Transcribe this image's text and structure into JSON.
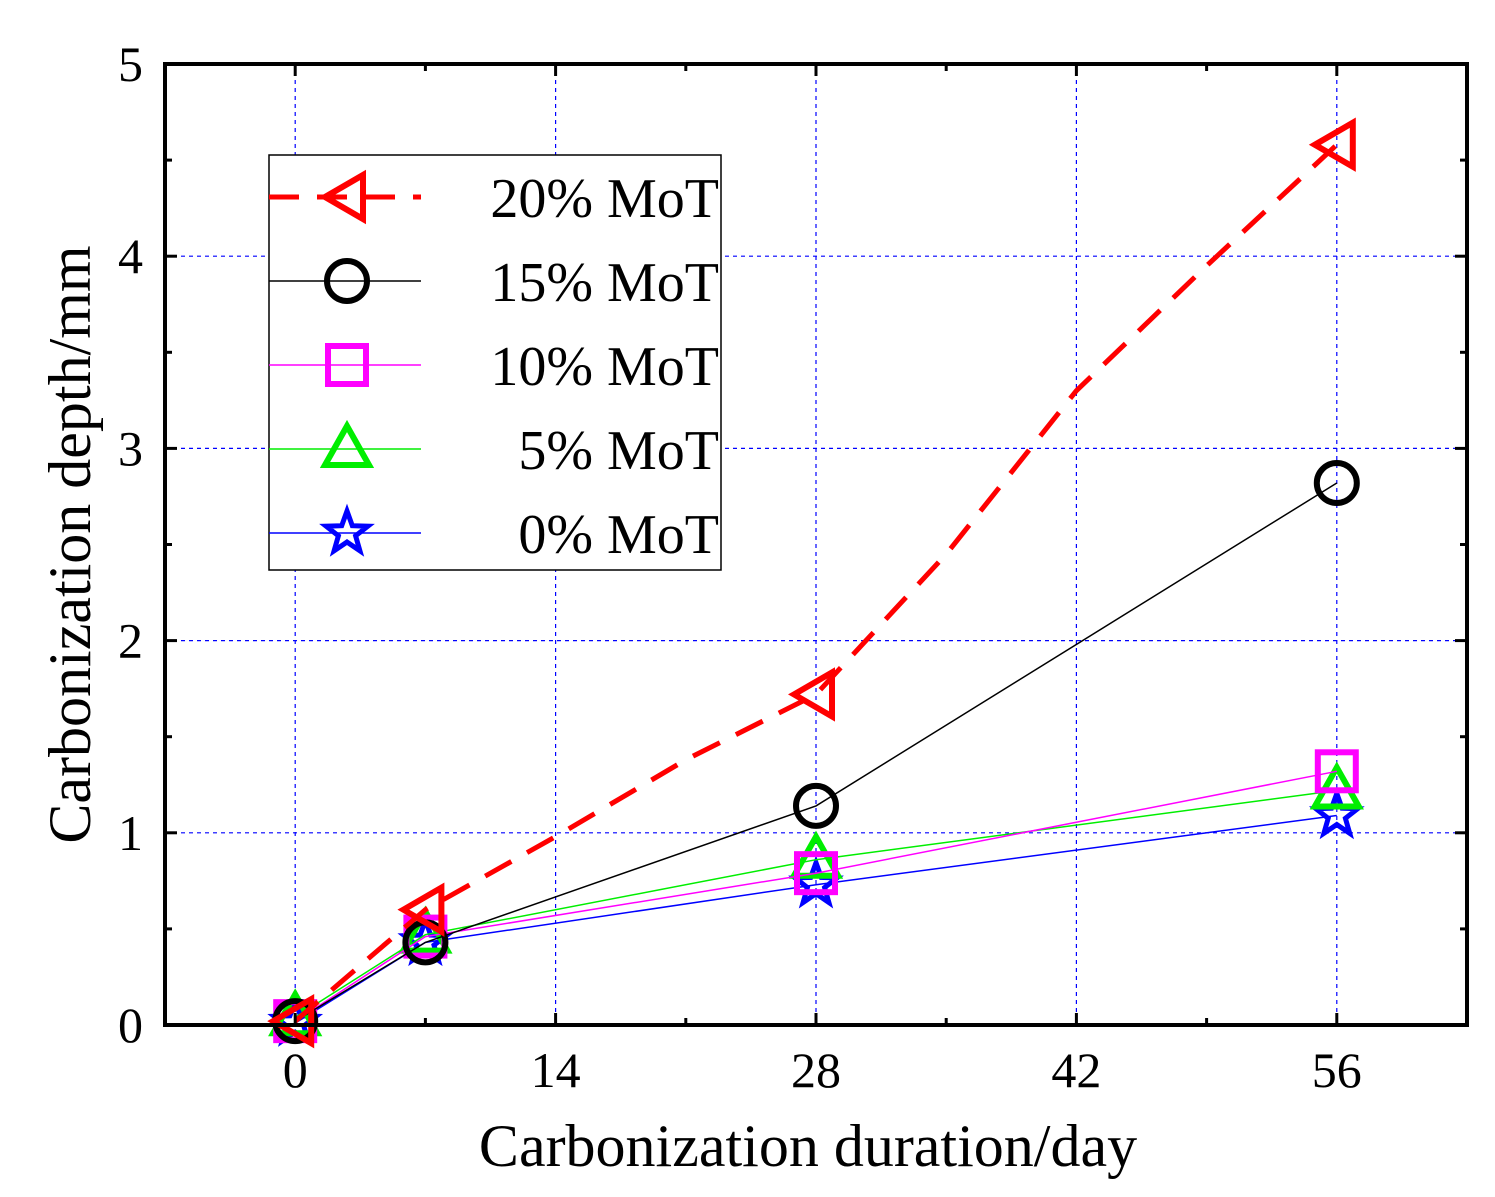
{
  "chart_data": {
    "type": "line",
    "title": "",
    "xlabel": "Carbonization duration/day",
    "ylabel": "Carbonization depth/mm",
    "xlim": [
      -7,
      63
    ],
    "ylim": [
      0,
      5
    ],
    "xticks": [
      0,
      14,
      28,
      42,
      56
    ],
    "yticks": [
      0,
      1,
      2,
      3,
      4,
      5
    ],
    "grid": true,
    "legend_position": "top-left",
    "series": [
      {
        "name": "20% MoT",
        "color": "#ff0000",
        "marker": "triangle-left",
        "line_style": "dashed",
        "x": [
          0,
          7,
          14,
          21,
          28,
          35,
          42,
          49,
          56
        ],
        "y": [
          0.02,
          0.6,
          0.98,
          1.38,
          1.72,
          2.45,
          3.3,
          3.95,
          4.58
        ]
      },
      {
        "name": "15% MoT",
        "color": "#000000",
        "marker": "circle",
        "line_style": "solid",
        "x": [
          0,
          7,
          28,
          56
        ],
        "y": [
          0.02,
          0.43,
          1.14,
          2.82
        ]
      },
      {
        "name": "10% MoT",
        "color": "#ff00ff",
        "marker": "square",
        "line_style": "solid",
        "x": [
          0,
          7,
          28,
          56
        ],
        "y": [
          0.02,
          0.46,
          0.79,
          1.32
        ]
      },
      {
        "name": "5% MoT",
        "color": "#00ee00",
        "marker": "triangle-up",
        "line_style": "solid",
        "x": [
          0,
          7,
          28,
          56
        ],
        "y": [
          0.04,
          0.47,
          0.86,
          1.22
        ]
      },
      {
        "name": "0% MoT",
        "color": "#0000ff",
        "marker": "star",
        "line_style": "solid",
        "x": [
          0,
          7,
          28,
          56
        ],
        "y": [
          0.01,
          0.43,
          0.73,
          1.09
        ]
      }
    ]
  }
}
